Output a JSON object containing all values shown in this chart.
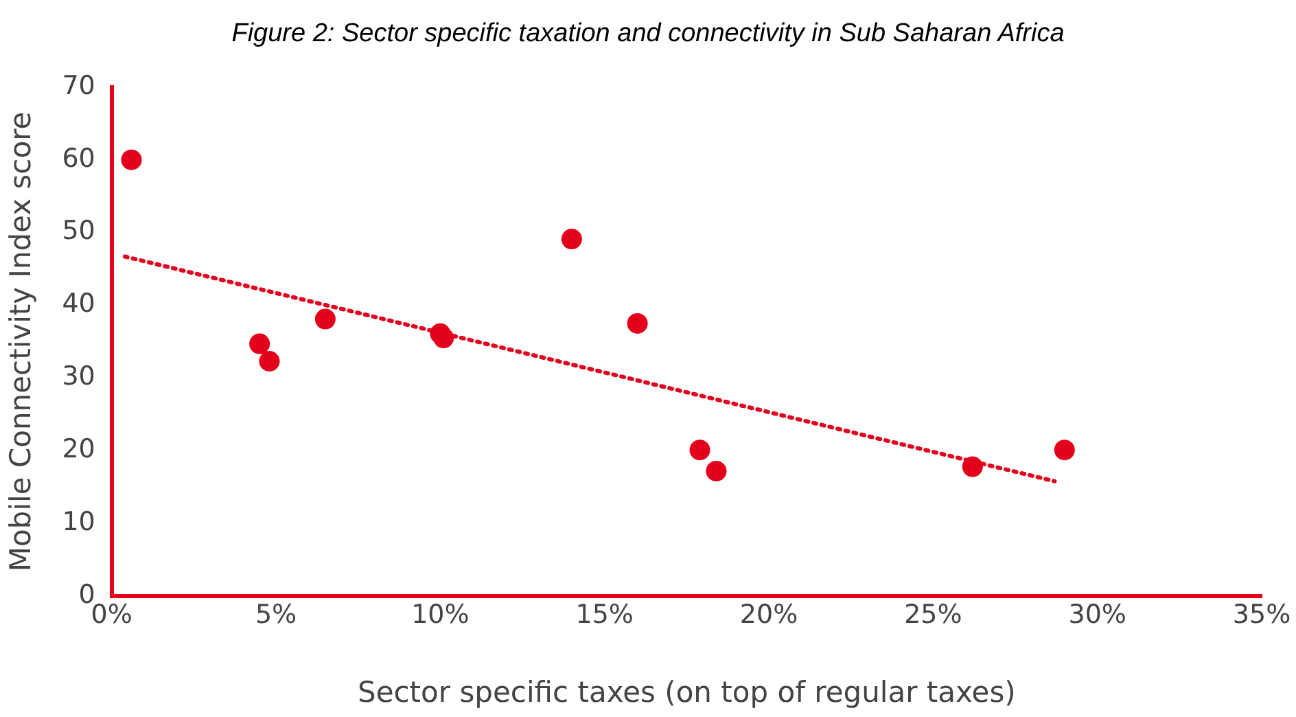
{
  "chart_data": {
    "type": "scatter",
    "title": "Figure 2: Sector specific taxation and connectivity in Sub Saharan Africa",
    "xlabel": "Sector specific taxes (on top of regular taxes)",
    "ylabel": "Mobile Connectivity Index score",
    "x": [
      0.6,
      4.5,
      4.8,
      6.5,
      10.0,
      10.1,
      14.0,
      16.0,
      17.9,
      18.4,
      26.2,
      29.0
    ],
    "series": [
      {
        "color": "#e2001a",
        "values": [
          60.0,
          34.7,
          32.3,
          38.1,
          36.1,
          35.5,
          49.1,
          37.5,
          20.1,
          17.2,
          17.8,
          20.1
        ]
      },
      {
        "type": "line",
        "color": "#e2001a",
        "x": [
          0.4,
          28.7
        ],
        "values": [
          46.7,
          15.8
        ],
        "line_style": "dotted",
        "marker": "none"
      }
    ],
    "marker": "circle",
    "xlim": [
      0,
      35
    ],
    "xticks": [
      {
        "value": 0,
        "label": "0%"
      },
      {
        "value": 5,
        "label": "5%"
      },
      {
        "value": 10,
        "label": "10%"
      },
      {
        "value": 15,
        "label": "15%"
      },
      {
        "value": 20,
        "label": "20%"
      },
      {
        "value": 25,
        "label": "25%"
      },
      {
        "value": 30,
        "label": "30%"
      },
      {
        "value": 35,
        "label": "35%"
      }
    ],
    "ylim": [
      0,
      70
    ],
    "yticks": [
      0,
      10,
      20,
      30,
      40,
      50,
      60,
      70
    ],
    "grid": false,
    "legend": false
  }
}
